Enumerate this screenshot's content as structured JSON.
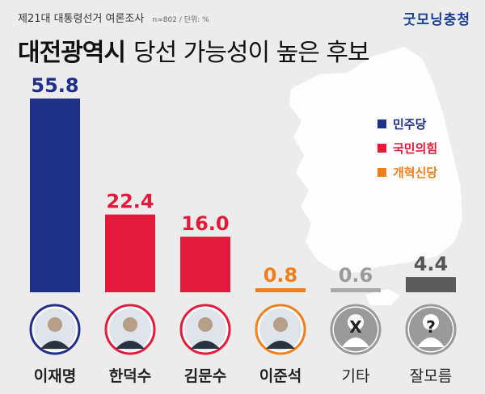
{
  "header": {
    "subtitle": "제21대 대통령선거 여론조사",
    "note": "n=802 / 단위: %",
    "title_bold": "대전광역시",
    "title_rest": "당선 가능성이 높은 후보",
    "brand": "굿모닝충청"
  },
  "legend": [
    {
      "label": "민주당",
      "color": "#1f2f8a"
    },
    {
      "label": "국민의힘",
      "color": "#e31b3b"
    },
    {
      "label": "개혁신당",
      "color": "#f07e1b"
    }
  ],
  "chart_data": {
    "type": "bar",
    "categories": [
      "이재명",
      "한덕수",
      "김문수",
      "이준석",
      "기타",
      "잘모름"
    ],
    "values": [
      55.8,
      22.4,
      16.0,
      0.8,
      0.6,
      4.4
    ],
    "value_labels": [
      "55.8",
      "22.4",
      "16.0",
      "0.8",
      "0.6",
      "4.4"
    ],
    "colors": [
      "#1f2f8a",
      "#e31b3b",
      "#e31b3b",
      "#f07e1b",
      "#a9a9a9",
      "#5a5a5a"
    ],
    "label_colors": [
      "#1f2f8a",
      "#e31b3b",
      "#e31b3b",
      "#f07e1b",
      "#9a9a9a",
      "#555555"
    ],
    "ring_colors": [
      "#1f2f8a",
      "#e31b3b",
      "#e31b3b",
      "#f07e1b",
      "#9a9a9a",
      "#9a9a9a"
    ],
    "icons": [
      "candidate-photo",
      "candidate-photo",
      "candidate-photo",
      "candidate-photo",
      "x-person-icon",
      "question-person-icon"
    ],
    "icon_symbols": [
      "",
      "",
      "",
      "",
      "X",
      "?"
    ],
    "ylim": [
      0,
      60
    ]
  }
}
